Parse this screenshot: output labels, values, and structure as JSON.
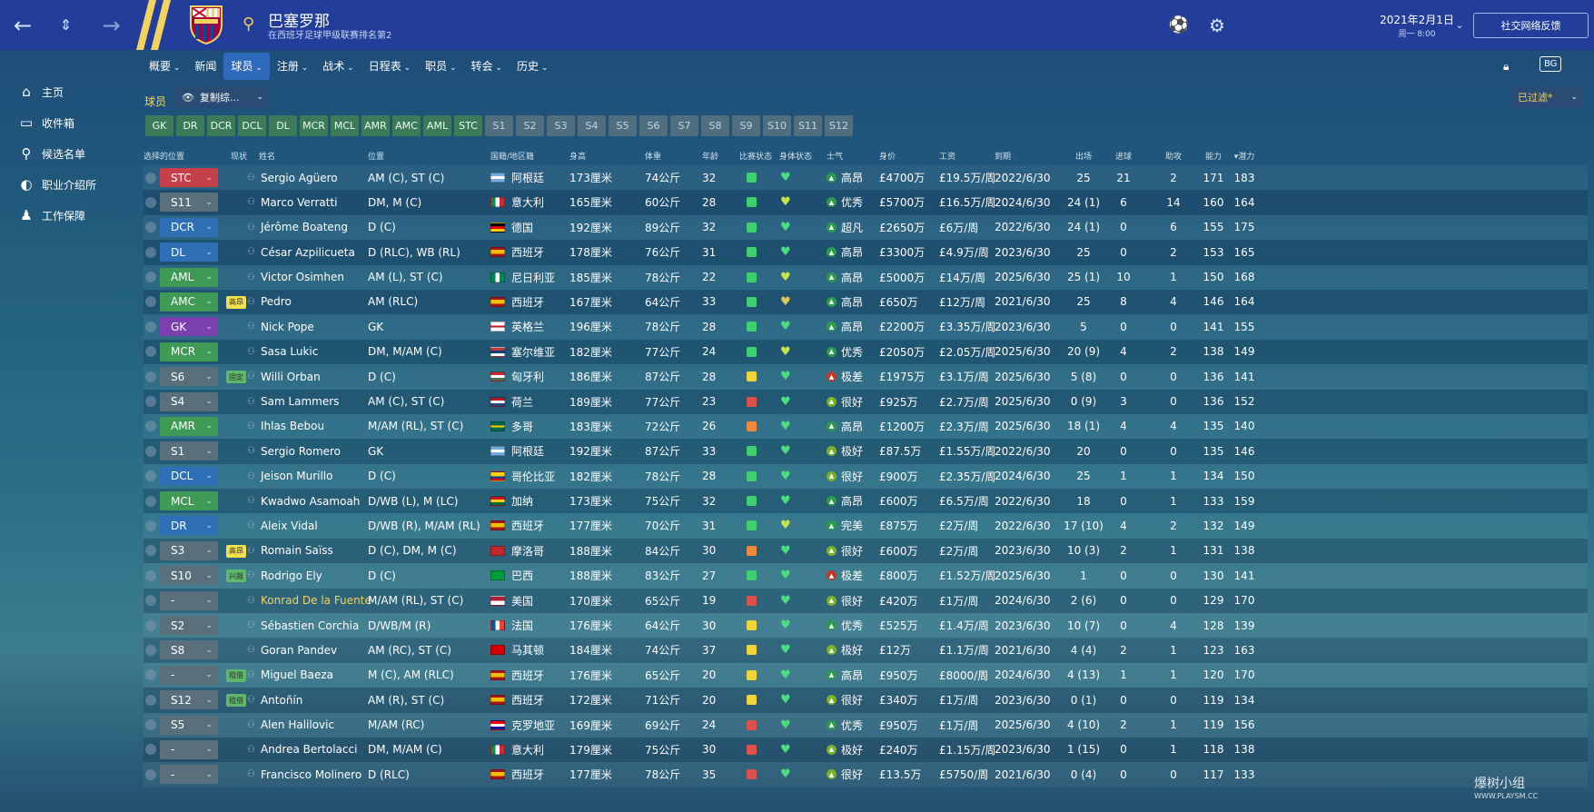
{
  "topbar": {
    "club_name": "巴塞罗那",
    "club_sub": "在西班牙足球甲级联赛排名第2",
    "date": "2021年2月1日",
    "time": "周一 8:00",
    "social": "社交网络反馈",
    "bg_label": "BG"
  },
  "nav": [
    "概要",
    "新闻",
    "球员",
    "注册",
    "战术",
    "日程表",
    "职员",
    "转会",
    "历史"
  ],
  "nav_dropdown": [
    true,
    false,
    true,
    true,
    true,
    true,
    true,
    true,
    true
  ],
  "sidebar": [
    {
      "label": "主页",
      "icon": "home-icon",
      "glyph": "⌂"
    },
    {
      "label": "收件箱",
      "icon": "inbox-icon",
      "glyph": "▭"
    },
    {
      "label": "候选名单",
      "icon": "search-icon",
      "glyph": "⚲"
    },
    {
      "label": "职业介绍所",
      "icon": "agency-icon",
      "glyph": "◐"
    },
    {
      "label": "工作保障",
      "icon": "job-security-icon",
      "glyph": "♟"
    }
  ],
  "filter": {
    "players_label": "球员",
    "copy_label": "复制综...",
    "filtered_label": "已过滤*"
  },
  "position_filters": [
    "GK",
    "DR",
    "DCR",
    "DCL",
    "DL",
    "MCR",
    "MCL",
    "AMR",
    "AMC",
    "AML",
    "STC",
    "S1",
    "S2",
    "S3",
    "S4",
    "S5",
    "S6",
    "S7",
    "S8",
    "S9",
    "S10",
    "S11",
    "S12"
  ],
  "headers": {
    "sel": "选择的位置",
    "status": "现状",
    "name": "姓名",
    "position": "位置",
    "nation": "国籍/地区籍",
    "height": "身高",
    "weight": "体重",
    "age": "年龄",
    "match": "比赛状态",
    "condition": "身体状态",
    "morale": "士气",
    "value": "身价",
    "wage": "工资",
    "expires": "到期",
    "apps": "出场",
    "goals": "进球",
    "assists": "助攻",
    "ca": "能力",
    "pa": "▾潜力"
  },
  "colors": {
    "pos_red": "#c6404a",
    "pos_blue": "#2f6fb5",
    "pos_green": "#3f9a55",
    "pos_purple": "#7b3fb0",
    "pos_gray": "#5a6f7c"
  },
  "players": [
    {
      "sel": "STC",
      "selc": "red",
      "tag": "",
      "name": "Sergio Agüero",
      "pos": "AM (C), ST (C)",
      "flag": "ar",
      "nat": "阿根廷",
      "h": "173厘米",
      "w": "74公斤",
      "age": "32",
      "ms": "g",
      "cond": "#4ade80",
      "mor": "高昂",
      "morc": "#2c9c4c",
      "value": "£4700万",
      "wage": "£19.5万/周",
      "exp": "2022/6/30",
      "apps": "25",
      "goals": "21",
      "ast": "2",
      "ca": "171",
      "pa": "183"
    },
    {
      "sel": "S11",
      "selc": "gray",
      "tag": "",
      "name": "Marco Verratti",
      "pos": "DM, M (C)",
      "flag": "it",
      "nat": "意大利",
      "h": "165厘米",
      "w": "60公斤",
      "age": "28",
      "ms": "g",
      "cond": "#c7e34a",
      "mor": "优秀",
      "morc": "#2c9c4c",
      "value": "£5700万",
      "wage": "£16.5万/周",
      "exp": "2024/6/30",
      "apps": "24 (1)",
      "goals": "6",
      "ast": "14",
      "ca": "160",
      "pa": "164"
    },
    {
      "sel": "DCR",
      "selc": "blue",
      "tag": "",
      "name": "Jérôme Boateng",
      "pos": "D (C)",
      "flag": "de",
      "nat": "德国",
      "h": "192厘米",
      "w": "89公斤",
      "age": "32",
      "ms": "g",
      "cond": "#4ade80",
      "mor": "超凡",
      "morc": "#2c9c4c",
      "value": "£2650万",
      "wage": "£6万/周",
      "exp": "2022/6/30",
      "apps": "24 (1)",
      "goals": "0",
      "ast": "6",
      "ca": "155",
      "pa": "175"
    },
    {
      "sel": "DL",
      "selc": "blue",
      "tag": "",
      "name": "César Azpilicueta",
      "pos": "D (RLC), WB (RL)",
      "flag": "es",
      "nat": "西班牙",
      "h": "178厘米",
      "w": "76公斤",
      "age": "31",
      "ms": "g",
      "cond": "#4ade80",
      "mor": "高昂",
      "morc": "#2c9c4c",
      "value": "£3300万",
      "wage": "£4.9万/周",
      "exp": "2023/6/30",
      "apps": "25",
      "goals": "0",
      "ast": "2",
      "ca": "153",
      "pa": "165"
    },
    {
      "sel": "AML",
      "selc": "green",
      "tag": "",
      "name": "Victor Osimhen",
      "pos": "AM (L), ST (C)",
      "flag": "ng",
      "nat": "尼日利亚",
      "h": "185厘米",
      "w": "78公斤",
      "age": "22",
      "ms": "g",
      "cond": "#c7e34a",
      "mor": "高昂",
      "morc": "#2c9c4c",
      "value": "£5000万",
      "wage": "£14万/周",
      "exp": "2025/6/30",
      "apps": "25 (1)",
      "goals": "10",
      "ast": "1",
      "ca": "150",
      "pa": "168"
    },
    {
      "sel": "AMC",
      "selc": "green",
      "tag": "高昂",
      "tagc": "#f4e04a",
      "name": "Pedro",
      "pos": "AM (RLC)",
      "flag": "es",
      "nat": "西班牙",
      "h": "167厘米",
      "w": "64公斤",
      "age": "33",
      "ms": "g",
      "cond": "#d8c85a",
      "mor": "高昂",
      "morc": "#2c9c4c",
      "value": "£650万",
      "wage": "£12万/周",
      "exp": "2021/6/30",
      "apps": "25",
      "goals": "8",
      "ast": "4",
      "ca": "146",
      "pa": "164"
    },
    {
      "sel": "GK",
      "selc": "purple",
      "tag": "",
      "name": "Nick Pope",
      "pos": "GK",
      "flag": "en",
      "nat": "英格兰",
      "h": "196厘米",
      "w": "78公斤",
      "age": "28",
      "ms": "g",
      "cond": "#4ade80",
      "mor": "高昂",
      "morc": "#2c9c4c",
      "value": "£2200万",
      "wage": "£3.35万/周",
      "exp": "2023/6/30",
      "apps": "5",
      "goals": "0",
      "ast": "0",
      "ca": "141",
      "pa": "155"
    },
    {
      "sel": "MCR",
      "selc": "green",
      "tag": "",
      "name": "Sasa Lukic",
      "pos": "DM, M/AM (C)",
      "flag": "rs",
      "nat": "塞尔维亚",
      "h": "182厘米",
      "w": "77公斤",
      "age": "24",
      "ms": "g",
      "cond": "#c7e34a",
      "mor": "优秀",
      "morc": "#2c9c4c",
      "value": "£2050万",
      "wage": "£2.05万/周",
      "exp": "2025/6/30",
      "apps": "20 (9)",
      "goals": "4",
      "ast": "2",
      "ca": "138",
      "pa": "149"
    },
    {
      "sel": "S6",
      "selc": "gray",
      "tag": "固定",
      "tagc": "#5fb86a",
      "name": "Willi Orban",
      "pos": "D (C)",
      "flag": "hu",
      "nat": "匈牙利",
      "h": "186厘米",
      "w": "87公斤",
      "age": "28",
      "ms": "y",
      "cond": "#4ade80",
      "mor": "极差",
      "morc": "#c0392b",
      "value": "£1975万",
      "wage": "£3.1万/周",
      "exp": "2025/6/30",
      "apps": "5 (8)",
      "goals": "0",
      "ast": "0",
      "ca": "136",
      "pa": "141"
    },
    {
      "sel": "S4",
      "selc": "gray",
      "tag": "",
      "name": "Sam Lammers",
      "pos": "AM (C), ST (C)",
      "flag": "nl",
      "nat": "荷兰",
      "h": "189厘米",
      "w": "77公斤",
      "age": "23",
      "ms": "r",
      "cond": "#4ade80",
      "mor": "很好",
      "morc": "#7bb02c",
      "value": "£925万",
      "wage": "£2.7万/周",
      "exp": "2025/6/30",
      "apps": "0 (9)",
      "goals": "3",
      "ast": "0",
      "ca": "136",
      "pa": "152"
    },
    {
      "sel": "AMR",
      "selc": "green",
      "tag": "",
      "name": "Ihlas Bebou",
      "pos": "M/AM (RL), ST (C)",
      "flag": "tg",
      "nat": "多哥",
      "h": "183厘米",
      "w": "72公斤",
      "age": "26",
      "ms": "o",
      "cond": "#4ade80",
      "mor": "高昂",
      "morc": "#2c9c4c",
      "value": "£1200万",
      "wage": "£2.3万/周",
      "exp": "2025/6/30",
      "apps": "18 (1)",
      "goals": "4",
      "ast": "4",
      "ca": "135",
      "pa": "140"
    },
    {
      "sel": "S1",
      "selc": "gray",
      "tag": "",
      "name": "Sergio Romero",
      "pos": "GK",
      "flag": "ar",
      "nat": "阿根廷",
      "h": "192厘米",
      "w": "87公斤",
      "age": "33",
      "ms": "g",
      "cond": "#4ade80",
      "mor": "极好",
      "morc": "#7bb02c",
      "value": "£87.5万",
      "wage": "£1.55万/周",
      "exp": "2022/6/30",
      "apps": "20",
      "goals": "0",
      "ast": "0",
      "ca": "135",
      "pa": "146"
    },
    {
      "sel": "DCL",
      "selc": "blue",
      "tag": "",
      "name": "Jeison Murillo",
      "pos": "D (C)",
      "flag": "co",
      "nat": "哥伦比亚",
      "h": "182厘米",
      "w": "78公斤",
      "age": "28",
      "ms": "g",
      "cond": "#4ade80",
      "mor": "很好",
      "morc": "#7bb02c",
      "value": "£900万",
      "wage": "£2.35万/周",
      "exp": "2024/6/30",
      "apps": "25",
      "goals": "1",
      "ast": "1",
      "ca": "134",
      "pa": "150"
    },
    {
      "sel": "MCL",
      "selc": "green",
      "tag": "",
      "name": "Kwadwo Asamoah",
      "pos": "D/WB (L), M (LC)",
      "flag": "gh",
      "nat": "加纳",
      "h": "173厘米",
      "w": "75公斤",
      "age": "32",
      "ms": "g",
      "cond": "#4ade80",
      "mor": "高昂",
      "morc": "#2c9c4c",
      "value": "£600万",
      "wage": "£6.5万/周",
      "exp": "2022/6/30",
      "apps": "18",
      "goals": "0",
      "ast": "1",
      "ca": "133",
      "pa": "159"
    },
    {
      "sel": "DR",
      "selc": "blue",
      "tag": "",
      "name": "Aleix Vidal",
      "pos": "D/WB (R), M/AM (RL)",
      "flag": "es",
      "nat": "西班牙",
      "h": "177厘米",
      "w": "70公斤",
      "age": "31",
      "ms": "g",
      "cond": "#c7e34a",
      "mor": "完美",
      "morc": "#2c9c4c",
      "value": "£875万",
      "wage": "£2万/周",
      "exp": "2022/6/30",
      "apps": "17 (10)",
      "goals": "4",
      "ast": "2",
      "ca": "132",
      "pa": "149"
    },
    {
      "sel": "S3",
      "selc": "gray",
      "tag": "高昂",
      "tagc": "#f4e04a",
      "name": "Romain Saïss",
      "pos": "D (C), DM, M (C)",
      "flag": "ma",
      "nat": "摩洛哥",
      "h": "188厘米",
      "w": "84公斤",
      "age": "30",
      "ms": "o",
      "cond": "#4ade80",
      "mor": "很好",
      "morc": "#7bb02c",
      "value": "£600万",
      "wage": "£2万/周",
      "exp": "2023/6/30",
      "apps": "10 (3)",
      "goals": "2",
      "ast": "1",
      "ca": "131",
      "pa": "138"
    },
    {
      "sel": "S10",
      "selc": "gray",
      "tag": "兴趣",
      "tagc": "#5fb86a",
      "name": "Rodrigo Ely",
      "pos": "D (C)",
      "flag": "br",
      "nat": "巴西",
      "h": "188厘米",
      "w": "83公斤",
      "age": "27",
      "ms": "g",
      "cond": "#4ade80",
      "mor": "极差",
      "morc": "#c0392b",
      "value": "£800万",
      "wage": "£1.52万/周",
      "exp": "2025/6/30",
      "apps": "1",
      "goals": "0",
      "ast": "0",
      "ca": "130",
      "pa": "141"
    },
    {
      "sel": "-",
      "selc": "gray",
      "tag": "",
      "name": "Konrad De la Fuente",
      "nameColor": "#f2d35d",
      "pos": "M/AM (RL), ST (C)",
      "flag": "us",
      "nat": "美国",
      "h": "170厘米",
      "w": "65公斤",
      "age": "19",
      "ms": "r",
      "cond": "#4ade80",
      "mor": "很好",
      "morc": "#7bb02c",
      "value": "£420万",
      "wage": "£1万/周",
      "exp": "2024/6/30",
      "apps": "2 (6)",
      "goals": "0",
      "ast": "0",
      "ca": "129",
      "pa": "170"
    },
    {
      "sel": "S2",
      "selc": "gray",
      "tag": "",
      "name": "Sébastien Corchia",
      "pos": "D/WB/M (R)",
      "flag": "fr",
      "nat": "法国",
      "h": "176厘米",
      "w": "64公斤",
      "age": "30",
      "ms": "y",
      "cond": "#4ade80",
      "mor": "优秀",
      "morc": "#2c9c4c",
      "value": "£525万",
      "wage": "£1.4万/周",
      "exp": "2023/6/30",
      "apps": "10 (7)",
      "goals": "0",
      "ast": "4",
      "ca": "128",
      "pa": "139"
    },
    {
      "sel": "S8",
      "selc": "gray",
      "tag": "",
      "name": "Goran Pandev",
      "pos": "AM (RC), ST (C)",
      "flag": "mk",
      "nat": "马其顿",
      "h": "184厘米",
      "w": "74公斤",
      "age": "37",
      "ms": "y",
      "cond": "#4ade80",
      "mor": "极好",
      "morc": "#7bb02c",
      "value": "£12万",
      "wage": "£1.1万/周",
      "exp": "2021/6/30",
      "apps": "4 (4)",
      "goals": "2",
      "ast": "1",
      "ca": "123",
      "pa": "163"
    },
    {
      "sel": "-",
      "selc": "gray",
      "tag": "租借",
      "tagc": "#5fb86a",
      "name": "Miguel Baeza",
      "pos": "M (C), AM (RLC)",
      "flag": "es",
      "nat": "西班牙",
      "h": "176厘米",
      "w": "65公斤",
      "age": "20",
      "ms": "y",
      "cond": "#4ade80",
      "mor": "高昂",
      "morc": "#2c9c4c",
      "value": "£950万",
      "wage": "£8000/周",
      "exp": "2024/6/30",
      "apps": "4 (13)",
      "goals": "1",
      "ast": "1",
      "ca": "120",
      "pa": "170"
    },
    {
      "sel": "S12",
      "selc": "gray",
      "tag": "租借",
      "tagc": "#5fb86a",
      "name": "Antoñín",
      "pos": "AM (R), ST (C)",
      "flag": "es",
      "nat": "西班牙",
      "h": "172厘米",
      "w": "71公斤",
      "age": "20",
      "ms": "y",
      "cond": "#4ade80",
      "mor": "很好",
      "morc": "#7bb02c",
      "value": "£340万",
      "wage": "£1万/周",
      "exp": "2023/6/30",
      "apps": "0 (1)",
      "goals": "0",
      "ast": "0",
      "ca": "119",
      "pa": "134"
    },
    {
      "sel": "S5",
      "selc": "gray",
      "tag": "",
      "name": "Alen Halilovic",
      "pos": "M/AM (RC)",
      "flag": "hr",
      "nat": "克罗地亚",
      "h": "169厘米",
      "w": "69公斤",
      "age": "24",
      "ms": "r",
      "cond": "#4ade80",
      "mor": "优秀",
      "morc": "#2c9c4c",
      "value": "£950万",
      "wage": "£1万/周",
      "exp": "2025/6/30",
      "apps": "4 (10)",
      "goals": "2",
      "ast": "1",
      "ca": "119",
      "pa": "156"
    },
    {
      "sel": "-",
      "selc": "gray",
      "tag": "",
      "name": "Andrea Bertolacci",
      "pos": "DM, M/AM (C)",
      "flag": "it",
      "nat": "意大利",
      "h": "179厘米",
      "w": "75公斤",
      "age": "30",
      "ms": "r",
      "cond": "#4ade80",
      "mor": "极好",
      "morc": "#7bb02c",
      "value": "£240万",
      "wage": "£1.15万/周",
      "exp": "2023/6/30",
      "apps": "1 (15)",
      "goals": "0",
      "ast": "1",
      "ca": "118",
      "pa": "138"
    },
    {
      "sel": "-",
      "selc": "gray",
      "tag": "",
      "name": "Francisco Molinero",
      "pos": "D (RLC)",
      "flag": "es",
      "nat": "西班牙",
      "h": "177厘米",
      "w": "78公斤",
      "age": "35",
      "ms": "r",
      "cond": "#4ade80",
      "mor": "很好",
      "morc": "#7bb02c",
      "value": "£13.5万",
      "wage": "£5750/周",
      "exp": "2021/6/30",
      "apps": "0 (4)",
      "goals": "0",
      "ast": "0",
      "ca": "117",
      "pa": "133"
    }
  ],
  "watermark": "爆树小组",
  "watermark_sub": "WWW.PLAYSM.CC"
}
